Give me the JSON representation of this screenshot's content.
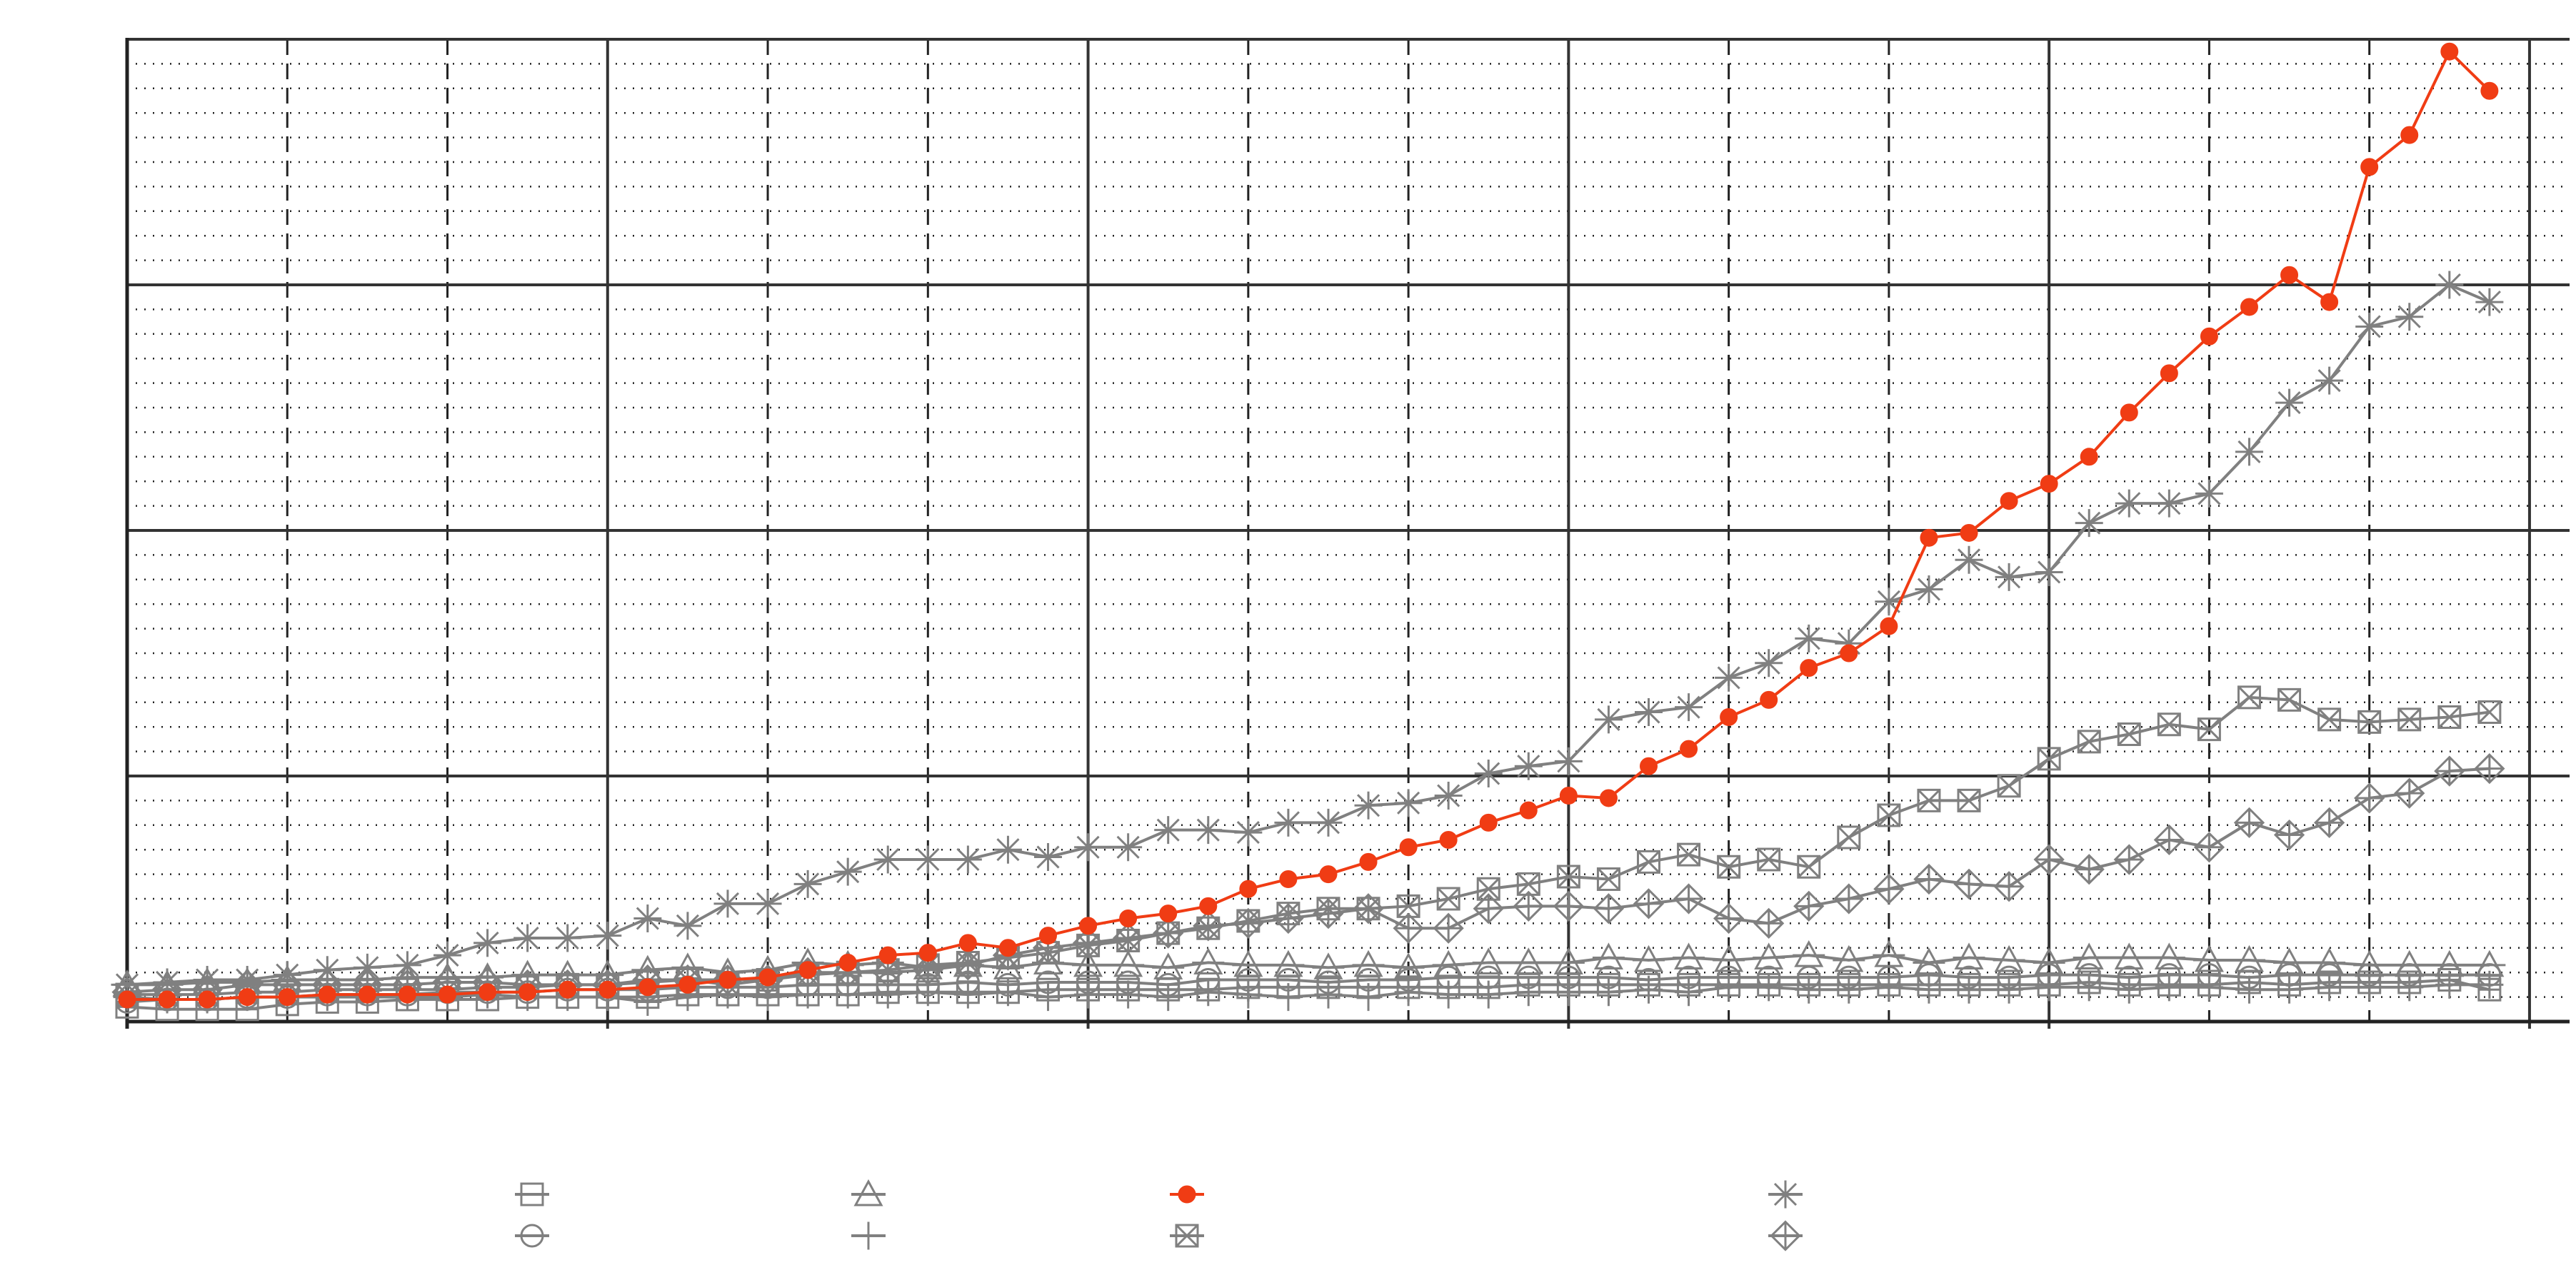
{
  "chart_data": {
    "type": "line",
    "xlim": [
      0,
      61
    ],
    "xticks": [
      0,
      12,
      24,
      36,
      48,
      60
    ],
    "xminor": 4,
    "ylim": [
      0,
      4
    ],
    "yticks": [
      0,
      1,
      2,
      3,
      4
    ],
    "yminor": 0.1,
    "grid": true,
    "legend": "bottom",
    "legend_columns": 4,
    "series": [
      {
        "marker": "square",
        "color": "#808080",
        "values": [
          0.06,
          0.05,
          0.05,
          0.05,
          0.07,
          0.08,
          0.08,
          0.09,
          0.09,
          0.09,
          0.1,
          0.1,
          0.1,
          0.1,
          0.11,
          0.11,
          0.11,
          0.11,
          0.11,
          0.12,
          0.12,
          0.12,
          0.12,
          0.13,
          0.13,
          0.13,
          0.13,
          0.13,
          0.14,
          0.14,
          0.14,
          0.14,
          0.14,
          0.14,
          0.14,
          0.15,
          0.15,
          0.15,
          0.15,
          0.15,
          0.15,
          0.15,
          0.15,
          0.15,
          0.15,
          0.15,
          0.15,
          0.15,
          0.15,
          0.16,
          0.15,
          0.15,
          0.15,
          0.16,
          0.15,
          0.16,
          0.16,
          0.16,
          0.17,
          0.13
        ]
      },
      {
        "marker": "circle",
        "color": "#808080",
        "values": [
          0.08,
          0.09,
          0.09,
          0.1,
          0.1,
          0.11,
          0.11,
          0.11,
          0.12,
          0.12,
          0.12,
          0.13,
          0.13,
          0.13,
          0.14,
          0.14,
          0.14,
          0.15,
          0.15,
          0.15,
          0.15,
          0.16,
          0.15,
          0.16,
          0.16,
          0.16,
          0.15,
          0.17,
          0.17,
          0.17,
          0.16,
          0.17,
          0.17,
          0.18,
          0.18,
          0.18,
          0.18,
          0.18,
          0.17,
          0.18,
          0.18,
          0.18,
          0.18,
          0.18,
          0.18,
          0.19,
          0.18,
          0.18,
          0.19,
          0.19,
          0.18,
          0.19,
          0.19,
          0.18,
          0.19,
          0.19,
          0.19,
          0.19,
          0.19,
          0.19
        ]
      },
      {
        "marker": "triangle",
        "color": "#808080",
        "values": [
          0.15,
          0.15,
          0.16,
          0.16,
          0.17,
          0.17,
          0.17,
          0.18,
          0.18,
          0.18,
          0.19,
          0.19,
          0.19,
          0.21,
          0.22,
          0.2,
          0.21,
          0.24,
          0.23,
          0.24,
          0.22,
          0.23,
          0.22,
          0.24,
          0.23,
          0.23,
          0.22,
          0.24,
          0.23,
          0.23,
          0.22,
          0.23,
          0.22,
          0.23,
          0.24,
          0.24,
          0.24,
          0.26,
          0.25,
          0.26,
          0.25,
          0.26,
          0.27,
          0.25,
          0.27,
          0.24,
          0.26,
          0.25,
          0.24,
          0.26,
          0.26,
          0.26,
          0.25,
          0.25,
          0.24,
          0.24,
          0.23,
          0.23,
          0.23,
          0.23
        ]
      },
      {
        "marker": "plus",
        "color": "#808080",
        "values": [
          0.1,
          0.09,
          0.09,
          0.1,
          0.1,
          0.1,
          0.1,
          0.1,
          0.1,
          0.11,
          0.1,
          0.1,
          0.1,
          0.08,
          0.1,
          0.11,
          0.1,
          0.11,
          0.11,
          0.11,
          0.12,
          0.11,
          0.12,
          0.1,
          0.11,
          0.11,
          0.1,
          0.12,
          0.11,
          0.1,
          0.11,
          0.1,
          0.12,
          0.11,
          0.11,
          0.12,
          0.12,
          0.12,
          0.13,
          0.12,
          0.14,
          0.14,
          0.13,
          0.13,
          0.14,
          0.13,
          0.13,
          0.13,
          0.14,
          0.14,
          0.13,
          0.14,
          0.14,
          0.13,
          0.13,
          0.14,
          0.14,
          0.14,
          0.15,
          0.15
        ]
      },
      {
        "marker": "dot",
        "color": "#f03c14",
        "values": [
          0.09,
          0.09,
          0.09,
          0.1,
          0.1,
          0.11,
          0.11,
          0.11,
          0.11,
          0.12,
          0.12,
          0.13,
          0.13,
          0.14,
          0.15,
          0.17,
          0.18,
          0.21,
          0.24,
          0.27,
          0.28,
          0.32,
          0.3,
          0.35,
          0.39,
          0.42,
          0.44,
          0.47,
          0.54,
          0.58,
          0.6,
          0.65,
          0.71,
          0.74,
          0.81,
          0.86,
          0.92,
          0.91,
          1.04,
          1.11,
          1.24,
          1.31,
          1.44,
          1.5,
          1.61,
          1.97,
          1.99,
          2.12,
          2.19,
          2.3,
          2.48,
          2.64,
          2.79,
          2.91,
          3.04,
          2.93,
          3.48,
          3.61,
          3.95,
          3.79
        ]
      },
      {
        "marker": "boxx",
        "color": "#808080",
        "values": [
          0.11,
          0.11,
          0.11,
          0.12,
          0.12,
          0.13,
          0.13,
          0.13,
          0.13,
          0.14,
          0.14,
          0.15,
          0.15,
          0.16,
          0.17,
          0.15,
          0.17,
          0.19,
          0.2,
          0.21,
          0.23,
          0.24,
          0.26,
          0.28,
          0.31,
          0.33,
          0.36,
          0.38,
          0.41,
          0.44,
          0.46,
          0.46,
          0.47,
          0.5,
          0.54,
          0.56,
          0.59,
          0.58,
          0.65,
          0.68,
          0.63,
          0.66,
          0.63,
          0.75,
          0.84,
          0.9,
          0.9,
          0.96,
          1.07,
          1.14,
          1.17,
          1.21,
          1.19,
          1.32,
          1.31,
          1.23,
          1.22,
          1.23,
          1.24,
          1.26
        ]
      },
      {
        "marker": "asterisk",
        "color": "#808080",
        "values": [
          0.15,
          0.16,
          0.17,
          0.17,
          0.19,
          0.21,
          0.22,
          0.23,
          0.27,
          0.32,
          0.34,
          0.34,
          0.35,
          0.42,
          0.39,
          0.48,
          0.48,
          0.56,
          0.61,
          0.66,
          0.66,
          0.66,
          0.7,
          0.67,
          0.71,
          0.71,
          0.78,
          0.78,
          0.77,
          0.81,
          0.81,
          0.88,
          0.89,
          0.92,
          1.01,
          1.04,
          1.06,
          1.23,
          1.26,
          1.28,
          1.4,
          1.46,
          1.56,
          1.54,
          1.71,
          1.76,
          1.88,
          1.81,
          1.83,
          2.03,
          2.11,
          2.11,
          2.15,
          2.32,
          2.52,
          2.61,
          2.83,
          2.87,
          3.0,
          2.93
        ]
      },
      {
        "marker": "diamondplus",
        "color": "#808080",
        "values": [
          0.12,
          0.13,
          0.13,
          0.15,
          0.15,
          0.15,
          0.15,
          0.15,
          0.16,
          0.16,
          0.15,
          0.15,
          0.15,
          0.17,
          0.17,
          0.17,
          0.17,
          0.2,
          0.2,
          0.2,
          0.21,
          0.23,
          0.27,
          0.3,
          0.32,
          0.34,
          0.36,
          0.39,
          0.4,
          0.42,
          0.44,
          0.46,
          0.38,
          0.38,
          0.46,
          0.47,
          0.47,
          0.46,
          0.48,
          0.5,
          0.42,
          0.4,
          0.47,
          0.5,
          0.54,
          0.58,
          0.56,
          0.55,
          0.66,
          0.62,
          0.66,
          0.74,
          0.71,
          0.81,
          0.76,
          0.81,
          0.91,
          0.93,
          1.02,
          1.03
        ]
      }
    ]
  }
}
